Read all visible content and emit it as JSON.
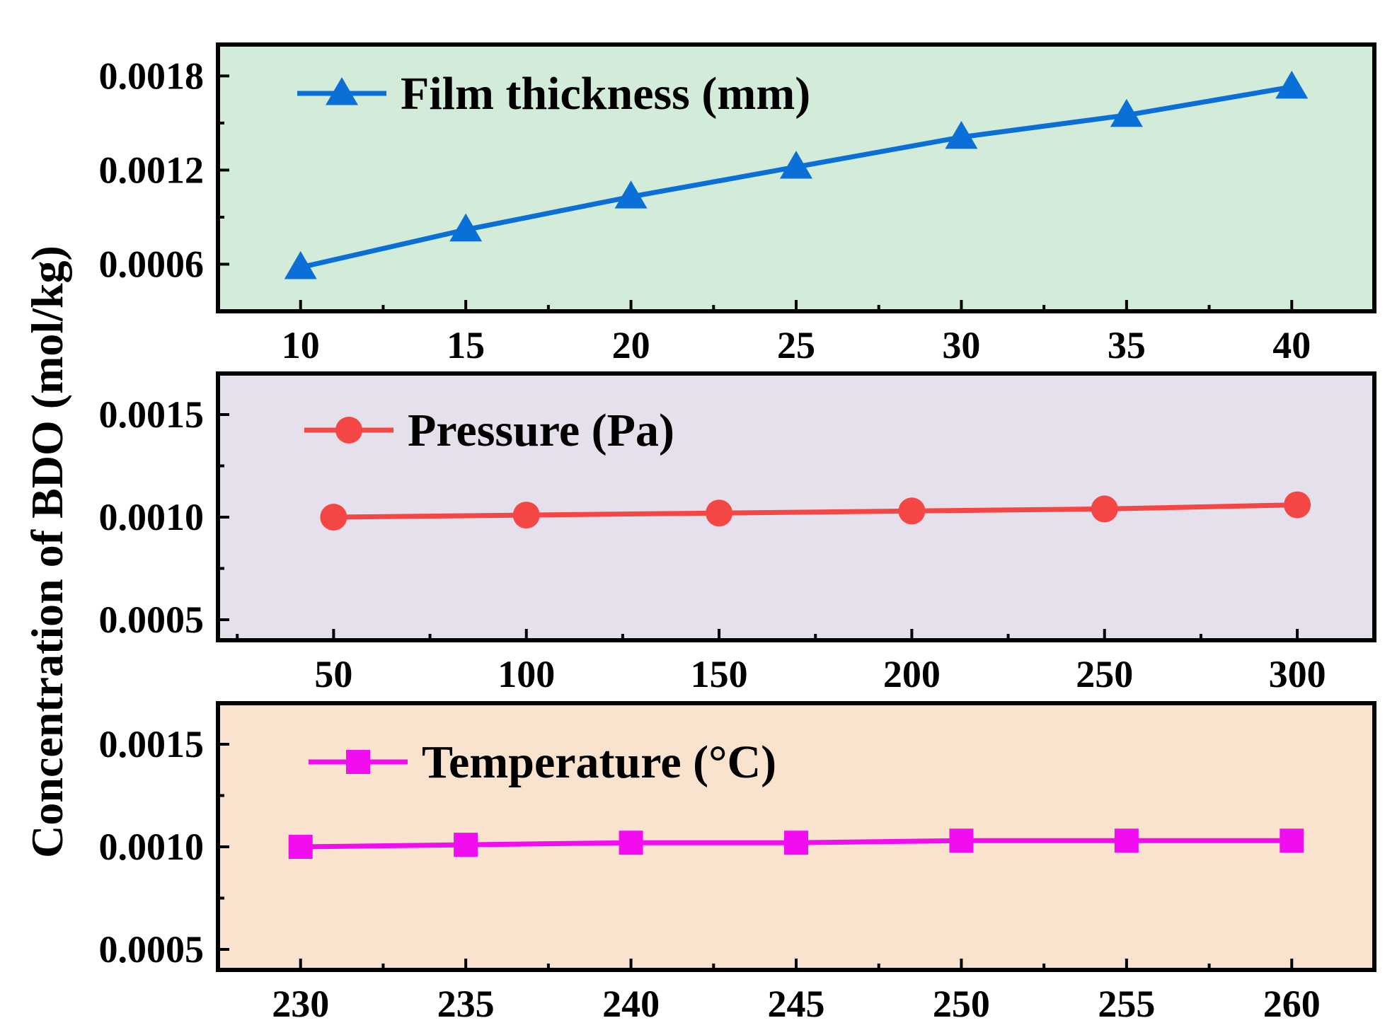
{
  "chart_data": {
    "type": "line",
    "ylabel": "Concentration of BDO (mol/kg)",
    "panels": [
      {
        "name": "film-thickness",
        "series_name": "Film thickness (mm)",
        "color": "#0a6fd6",
        "background": "#d3ecd9",
        "marker": "triangle",
        "x": [
          10,
          15,
          20,
          25,
          30,
          35,
          40
        ],
        "y": [
          0.00058,
          0.00082,
          0.00103,
          0.00122,
          0.00141,
          0.00155,
          0.00173
        ],
        "xlim": [
          7.5,
          42.5
        ],
        "ylim": [
          0.0003,
          0.002
        ],
        "xticks": [
          10,
          15,
          20,
          25,
          30,
          35,
          40
        ],
        "yticks": [
          0.0006,
          0.0012,
          0.0018
        ],
        "ytick_labels": [
          "0.0006",
          "0.0012",
          "0.0018"
        ]
      },
      {
        "name": "pressure",
        "series_name": "Pressure (Pa)",
        "color": "#f54646",
        "background": "#e6e0ed",
        "marker": "circle",
        "x": [
          50,
          100,
          150,
          200,
          250,
          300
        ],
        "y": [
          0.001,
          0.00101,
          0.00102,
          0.00103,
          0.00104,
          0.00106
        ],
        "xlim": [
          20,
          320
        ],
        "ylim": [
          0.0004,
          0.0017
        ],
        "xticks": [
          50,
          100,
          150,
          200,
          250,
          300
        ],
        "yticks": [
          0.0005,
          0.001,
          0.0015
        ],
        "ytick_labels": [
          "0.0005",
          "0.0010",
          "0.0015"
        ]
      },
      {
        "name": "temperature",
        "series_name": "Temperature (°C)",
        "color": "#f20cf0",
        "background": "#f9e3cf",
        "marker": "square",
        "x": [
          230,
          235,
          240,
          245,
          250,
          255,
          260
        ],
        "y": [
          0.001,
          0.00101,
          0.00102,
          0.00102,
          0.00103,
          0.00103,
          0.00103
        ],
        "xlim": [
          227.5,
          262.5
        ],
        "ylim": [
          0.0004,
          0.0017
        ],
        "xticks": [
          230,
          235,
          240,
          245,
          250,
          255,
          260
        ],
        "yticks": [
          0.0005,
          0.001,
          0.0015
        ],
        "ytick_labels": [
          "0.0005",
          "0.0010",
          "0.0015"
        ]
      }
    ]
  }
}
